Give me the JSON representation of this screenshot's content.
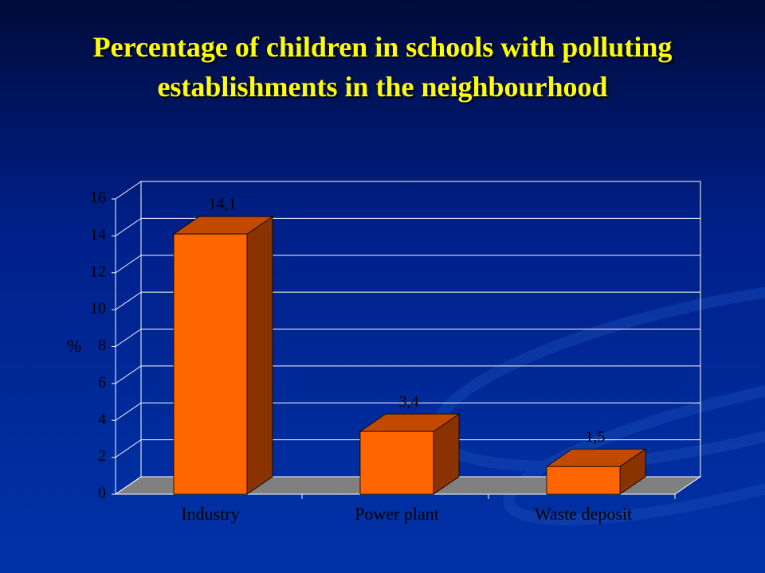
{
  "chart_data": {
    "type": "bar3d",
    "title": "Percentage of children in schools with polluting establishments in the neighbourhood",
    "y_label": "%",
    "categories": [
      "Industry",
      "Power plant",
      "Waste deposit"
    ],
    "values": [
      14.1,
      3.4,
      1.5
    ],
    "value_labels": [
      "14,1",
      "3,4",
      "1,5"
    ],
    "color": "#ff6600",
    "ylim": [
      0,
      16
    ],
    "yticks": [
      0,
      2,
      4,
      6,
      8,
      10,
      12,
      14,
      16
    ],
    "grid": true
  }
}
